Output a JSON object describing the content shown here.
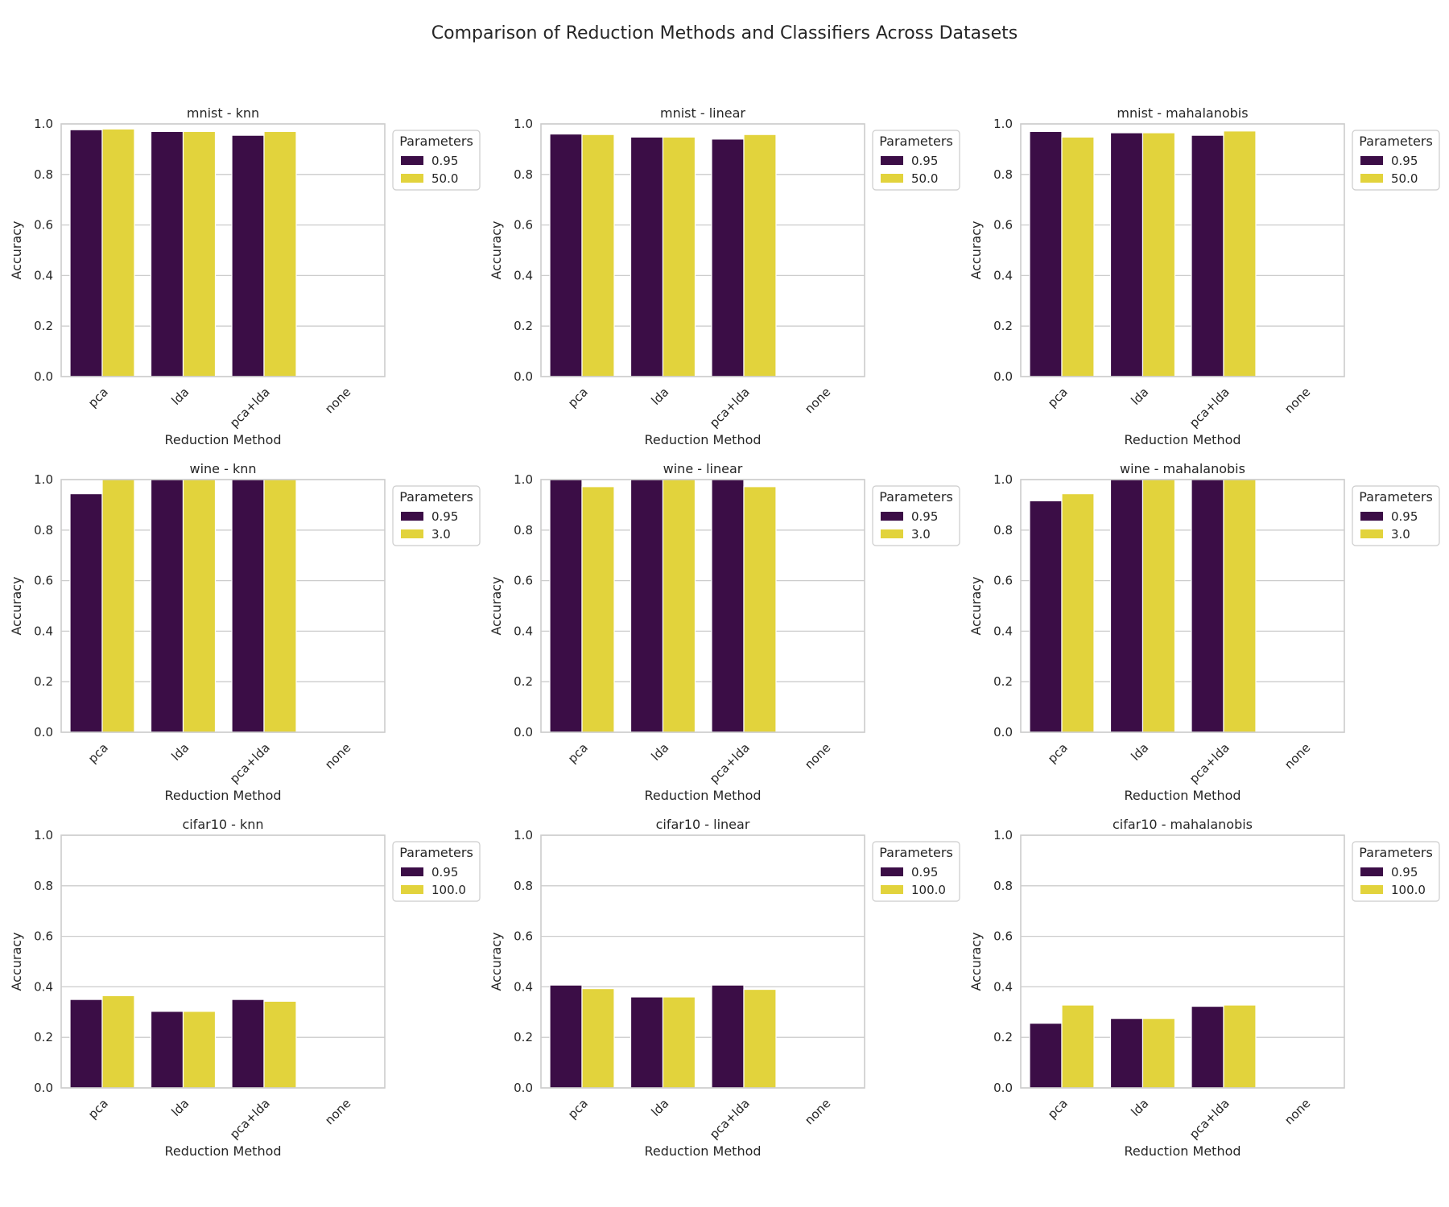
{
  "title": "Comparison of Reduction Methods and Classifiers Across Datasets",
  "colors": {
    "series_a": "#3b0d46",
    "series_b": "#e2d33c",
    "grid": "#cccccc",
    "frame": "#cccccc",
    "text": "#262626"
  },
  "chart_data": [
    {
      "type": "bar",
      "title": "mnist - knn",
      "categories": [
        "pca",
        "lda",
        "pca+lda",
        "none"
      ],
      "xlabel": "Reduction Method",
      "ylabel": "Accuracy",
      "ylim": [
        0,
        1
      ],
      "yticks": [
        "0.0",
        "0.2",
        "0.4",
        "0.6",
        "0.8",
        "1.0"
      ],
      "grid": true,
      "legend": {
        "title": "Parameters",
        "placement": "outside-right"
      },
      "series": [
        {
          "name": "0.95",
          "values": [
            0.977,
            0.97,
            0.955,
            null
          ]
        },
        {
          "name": "50.0",
          "values": [
            0.98,
            0.97,
            0.97,
            null
          ]
        }
      ]
    },
    {
      "type": "bar",
      "title": "mnist - linear",
      "categories": [
        "pca",
        "lda",
        "pca+lda",
        "none"
      ],
      "xlabel": "Reduction Method",
      "ylabel": "Accuracy",
      "ylim": [
        0,
        1
      ],
      "yticks": [
        "0.0",
        "0.2",
        "0.4",
        "0.6",
        "0.8",
        "1.0"
      ],
      "grid": true,
      "legend": {
        "title": "Parameters",
        "placement": "outside-right"
      },
      "series": [
        {
          "name": "0.95",
          "values": [
            0.96,
            0.948,
            0.94,
            null
          ]
        },
        {
          "name": "50.0",
          "values": [
            0.958,
            0.948,
            0.958,
            null
          ]
        }
      ]
    },
    {
      "type": "bar",
      "title": "mnist - mahalanobis",
      "categories": [
        "pca",
        "lda",
        "pca+lda",
        "none"
      ],
      "xlabel": "Reduction Method",
      "ylabel": "Accuracy",
      "ylim": [
        0,
        1
      ],
      "yticks": [
        "0.0",
        "0.2",
        "0.4",
        "0.6",
        "0.8",
        "1.0"
      ],
      "grid": true,
      "legend": {
        "title": "Parameters",
        "placement": "outside-right"
      },
      "series": [
        {
          "name": "0.95",
          "values": [
            0.97,
            0.965,
            0.955,
            null
          ]
        },
        {
          "name": "50.0",
          "values": [
            0.948,
            0.965,
            0.972,
            null
          ]
        }
      ]
    },
    {
      "type": "bar",
      "title": "wine - knn",
      "categories": [
        "pca",
        "lda",
        "pca+lda",
        "none"
      ],
      "xlabel": "Reduction Method",
      "ylabel": "Accuracy",
      "ylim": [
        0,
        1
      ],
      "yticks": [
        "0.0",
        "0.2",
        "0.4",
        "0.6",
        "0.8",
        "1.0"
      ],
      "grid": true,
      "legend": {
        "title": "Parameters",
        "placement": "outside-right"
      },
      "series": [
        {
          "name": "0.95",
          "values": [
            0.944,
            1.0,
            1.0,
            null
          ]
        },
        {
          "name": "3.0",
          "values": [
            1.0,
            1.0,
            1.0,
            null
          ]
        }
      ]
    },
    {
      "type": "bar",
      "title": "wine - linear",
      "categories": [
        "pca",
        "lda",
        "pca+lda",
        "none"
      ],
      "xlabel": "Reduction Method",
      "ylabel": "Accuracy",
      "ylim": [
        0,
        1
      ],
      "yticks": [
        "0.0",
        "0.2",
        "0.4",
        "0.6",
        "0.8",
        "1.0"
      ],
      "grid": true,
      "legend": {
        "title": "Parameters",
        "placement": "outside-right"
      },
      "series": [
        {
          "name": "0.95",
          "values": [
            1.0,
            1.0,
            1.0,
            null
          ]
        },
        {
          "name": "3.0",
          "values": [
            0.972,
            1.0,
            0.972,
            null
          ]
        }
      ]
    },
    {
      "type": "bar",
      "title": "wine - mahalanobis",
      "categories": [
        "pca",
        "lda",
        "pca+lda",
        "none"
      ],
      "xlabel": "Reduction Method",
      "ylabel": "Accuracy",
      "ylim": [
        0,
        1
      ],
      "yticks": [
        "0.0",
        "0.2",
        "0.4",
        "0.6",
        "0.8",
        "1.0"
      ],
      "grid": true,
      "legend": {
        "title": "Parameters",
        "placement": "outside-right"
      },
      "series": [
        {
          "name": "0.95",
          "values": [
            0.916,
            1.0,
            1.0,
            null
          ]
        },
        {
          "name": "3.0",
          "values": [
            0.944,
            1.0,
            1.0,
            null
          ]
        }
      ]
    },
    {
      "type": "bar",
      "title": "cifar10 - knn",
      "categories": [
        "pca",
        "lda",
        "pca+lda",
        "none"
      ],
      "xlabel": "Reduction Method",
      "ylabel": "Accuracy",
      "ylim": [
        0,
        1
      ],
      "yticks": [
        "0.0",
        "0.2",
        "0.4",
        "0.6",
        "0.8",
        "1.0"
      ],
      "grid": true,
      "legend": {
        "title": "Parameters",
        "placement": "outside-right"
      },
      "series": [
        {
          "name": "0.95",
          "values": [
            0.35,
            0.303,
            0.35,
            null
          ]
        },
        {
          "name": "100.0",
          "values": [
            0.365,
            0.303,
            0.343,
            null
          ]
        }
      ]
    },
    {
      "type": "bar",
      "title": "cifar10 - linear",
      "categories": [
        "pca",
        "lda",
        "pca+lda",
        "none"
      ],
      "xlabel": "Reduction Method",
      "ylabel": "Accuracy",
      "ylim": [
        0,
        1
      ],
      "yticks": [
        "0.0",
        "0.2",
        "0.4",
        "0.6",
        "0.8",
        "1.0"
      ],
      "grid": true,
      "legend": {
        "title": "Parameters",
        "placement": "outside-right"
      },
      "series": [
        {
          "name": "0.95",
          "values": [
            0.407,
            0.36,
            0.407,
            null
          ]
        },
        {
          "name": "100.0",
          "values": [
            0.393,
            0.36,
            0.39,
            null
          ]
        }
      ]
    },
    {
      "type": "bar",
      "title": "cifar10 - mahalanobis",
      "categories": [
        "pca",
        "lda",
        "pca+lda",
        "none"
      ],
      "xlabel": "Reduction Method",
      "ylabel": "Accuracy",
      "ylim": [
        0,
        1
      ],
      "yticks": [
        "0.0",
        "0.2",
        "0.4",
        "0.6",
        "0.8",
        "1.0"
      ],
      "grid": true,
      "legend": {
        "title": "Parameters",
        "placement": "outside-right"
      },
      "series": [
        {
          "name": "0.95",
          "values": [
            0.256,
            0.275,
            0.323,
            null
          ]
        },
        {
          "name": "100.0",
          "values": [
            0.328,
            0.275,
            0.328,
            null
          ]
        }
      ]
    }
  ]
}
